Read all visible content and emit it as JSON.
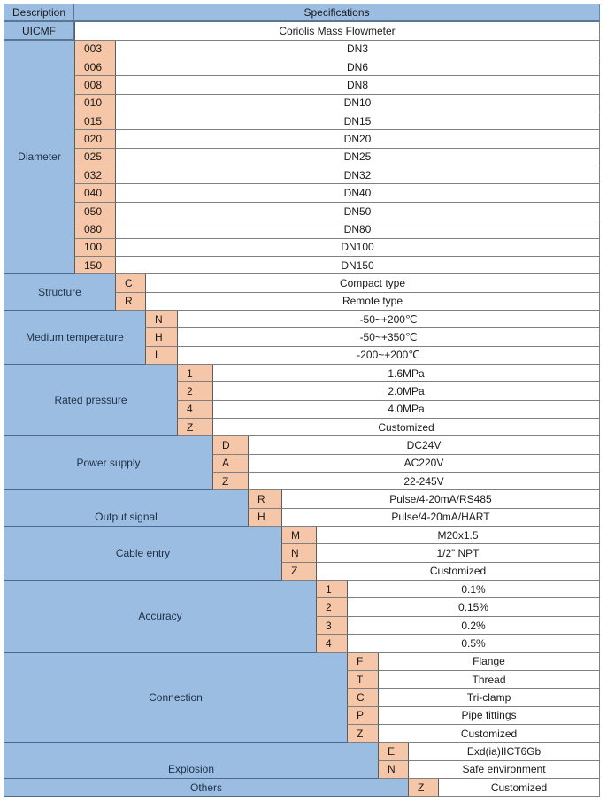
{
  "header": {
    "description_label": "Description",
    "specifications_label": "Specifications"
  },
  "model": {
    "code": "UICMF",
    "name": "Coriolis Mass Flowmeter"
  },
  "groups": [
    {
      "label": "Diameter",
      "options": [
        {
          "code": "003",
          "value": "DN3"
        },
        {
          "code": "006",
          "value": "DN6"
        },
        {
          "code": "008",
          "value": "DN8"
        },
        {
          "code": "010",
          "value": "DN10"
        },
        {
          "code": "015",
          "value": "DN15"
        },
        {
          "code": "020",
          "value": "DN20"
        },
        {
          "code": "025",
          "value": "DN25"
        },
        {
          "code": "032",
          "value": "DN32"
        },
        {
          "code": "040",
          "value": "DN40"
        },
        {
          "code": "050",
          "value": "DN50"
        },
        {
          "code": "080",
          "value": "DN80"
        },
        {
          "code": "100",
          "value": "DN100"
        },
        {
          "code": "150",
          "value": "DN150"
        }
      ]
    },
    {
      "label": "Structure",
      "options": [
        {
          "code": "C",
          "value": "Compact type"
        },
        {
          "code": "R",
          "value": "Remote type"
        }
      ]
    },
    {
      "label": "Medium temperature",
      "options": [
        {
          "code": "N",
          "value": "-50~+200℃"
        },
        {
          "code": "H",
          "value": "-50~+350℃"
        },
        {
          "code": "L",
          "value": "-200~+200℃"
        }
      ]
    },
    {
      "label": "Rated pressure",
      "options": [
        {
          "code": "1",
          "value": "1.6MPa"
        },
        {
          "code": "2",
          "value": "2.0MPa"
        },
        {
          "code": "4",
          "value": "4.0MPa"
        },
        {
          "code": "Z",
          "value": "Customized"
        }
      ]
    },
    {
      "label": "Power supply",
      "options": [
        {
          "code": "D",
          "value": "DC24V"
        },
        {
          "code": "A",
          "value": "AC220V"
        },
        {
          "code": "Z",
          "value": "22-245V"
        }
      ]
    },
    {
      "label": "Output signal",
      "options": [
        {
          "code": "R",
          "value": "Pulse/4-20mA/RS485"
        },
        {
          "code": "H",
          "value": "Pulse/4-20mA/HART"
        }
      ]
    },
    {
      "label": "Cable entry",
      "options": [
        {
          "code": "M",
          "value": "M20x1.5"
        },
        {
          "code": "N",
          "value": "1/2” NPT"
        },
        {
          "code": "Z",
          "value": "Customized"
        }
      ]
    },
    {
      "label": "Accuracy",
      "options": [
        {
          "code": "1",
          "value": "0.1%"
        },
        {
          "code": "2",
          "value": "0.15%"
        },
        {
          "code": "3",
          "value": "0.2%"
        },
        {
          "code": "4",
          "value": "0.5%"
        }
      ]
    },
    {
      "label": "Connection",
      "options": [
        {
          "code": "F",
          "value": "Flange"
        },
        {
          "code": "T",
          "value": "Thread"
        },
        {
          "code": "C",
          "value": "Tri-clamp"
        },
        {
          "code": "P",
          "value": "Pipe fittings"
        },
        {
          "code": "Z",
          "value": "Customized"
        }
      ]
    },
    {
      "label": "Explosion",
      "options": [
        {
          "code": "E",
          "value": "Exd(ia)IICT6Gb"
        },
        {
          "code": "N",
          "value": "Safe environment"
        }
      ]
    },
    {
      "label": "Others",
      "options": [
        {
          "code": "Z",
          "value": "Customized"
        }
      ]
    }
  ],
  "colors": {
    "header_blue": "#9bbde2",
    "code_peach": "#f5c6a8",
    "value_white": "#ffffff"
  }
}
